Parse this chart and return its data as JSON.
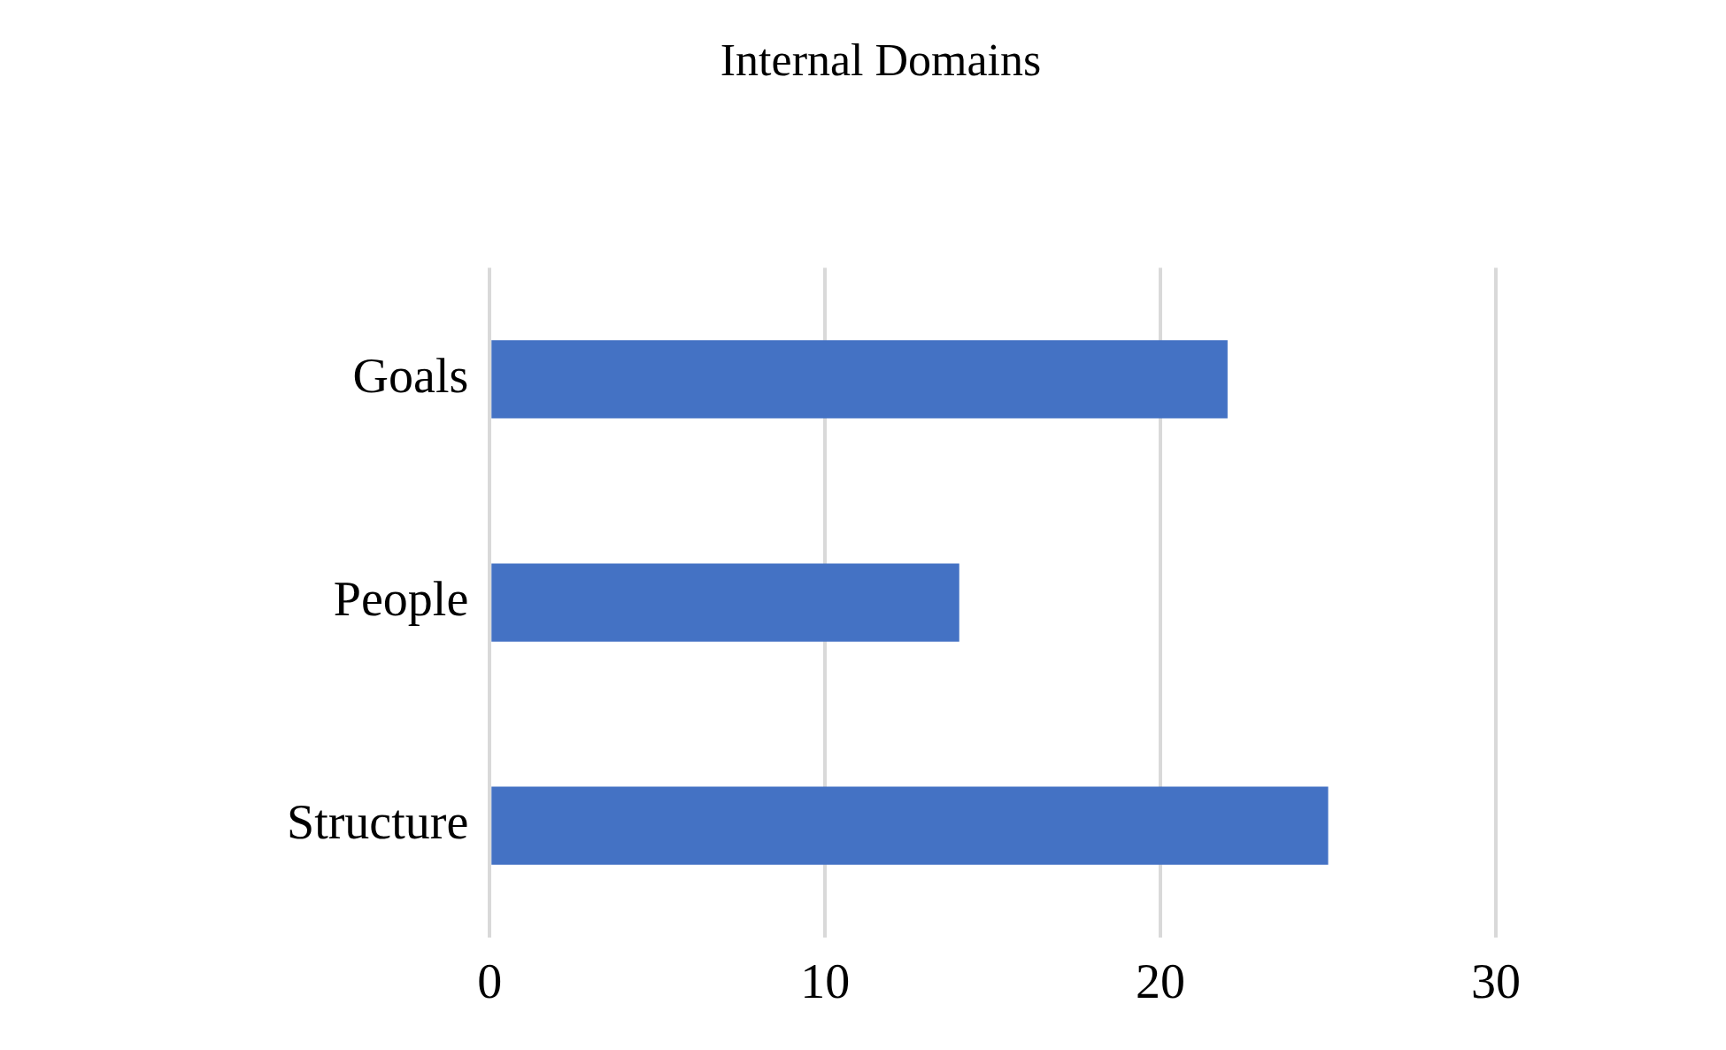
{
  "chart_data": {
    "type": "bar",
    "orientation": "horizontal",
    "title": "Internal Domains",
    "categories": [
      "Goals",
      "People",
      "Structure"
    ],
    "values": [
      22,
      14,
      25
    ],
    "color": "#4472c4",
    "xlim": [
      0,
      30
    ],
    "xticks": [
      0,
      10,
      20,
      30
    ],
    "grid": "x",
    "legend": false
  }
}
